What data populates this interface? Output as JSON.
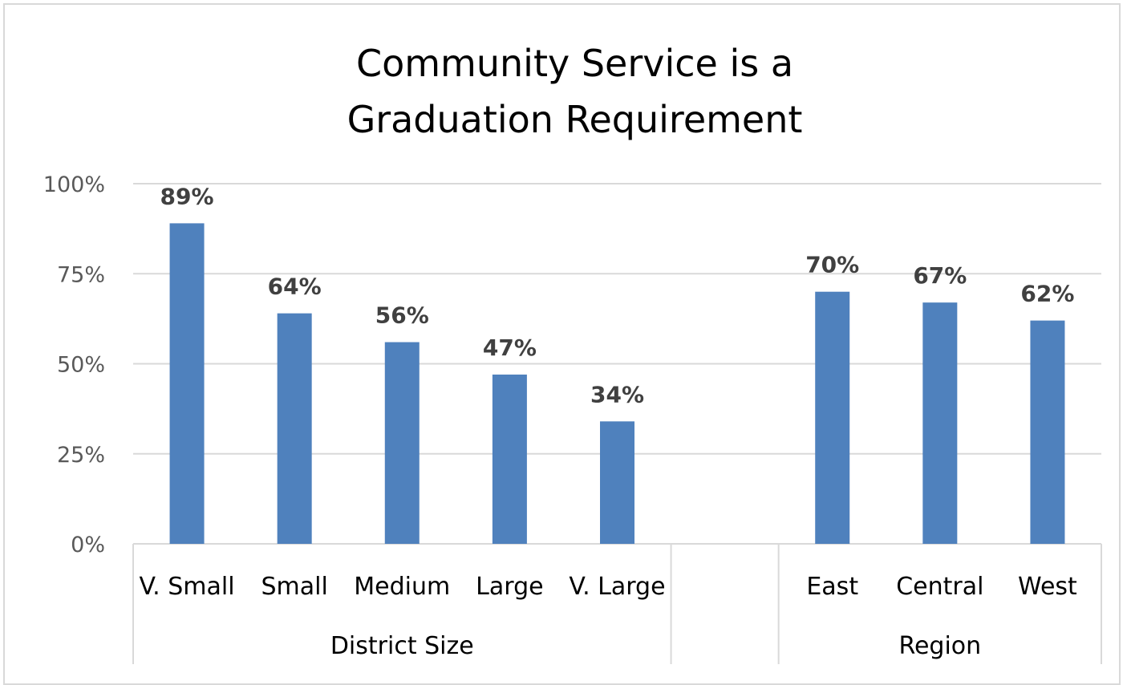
{
  "chart_data": {
    "type": "bar",
    "title": [
      "Community Service is a",
      "Graduation Requirement"
    ],
    "xlabel": "",
    "ylabel": "",
    "ylim": [
      0,
      100
    ],
    "yticks": [
      "0%",
      "25%",
      "50%",
      "75%",
      "100%"
    ],
    "ytick_values": [
      0,
      25,
      50,
      75,
      100
    ],
    "grid": true,
    "bar_color": "#4f81bd",
    "groups": [
      {
        "name": "District Size",
        "categories": [
          "V. Small",
          "Small",
          "Medium",
          "Large",
          "V. Large"
        ],
        "values": [
          89,
          64,
          56,
          47,
          34
        ],
        "labels": [
          "89%",
          "64%",
          "56%",
          "47%",
          "34%"
        ]
      },
      {
        "name": "",
        "categories": [
          ""
        ],
        "values": [
          null
        ],
        "labels": [
          ""
        ]
      },
      {
        "name": "Region",
        "categories": [
          "East",
          "Central",
          "West"
        ],
        "values": [
          70,
          67,
          62
        ],
        "labels": [
          "70%",
          "67%",
          "62%"
        ]
      }
    ]
  }
}
